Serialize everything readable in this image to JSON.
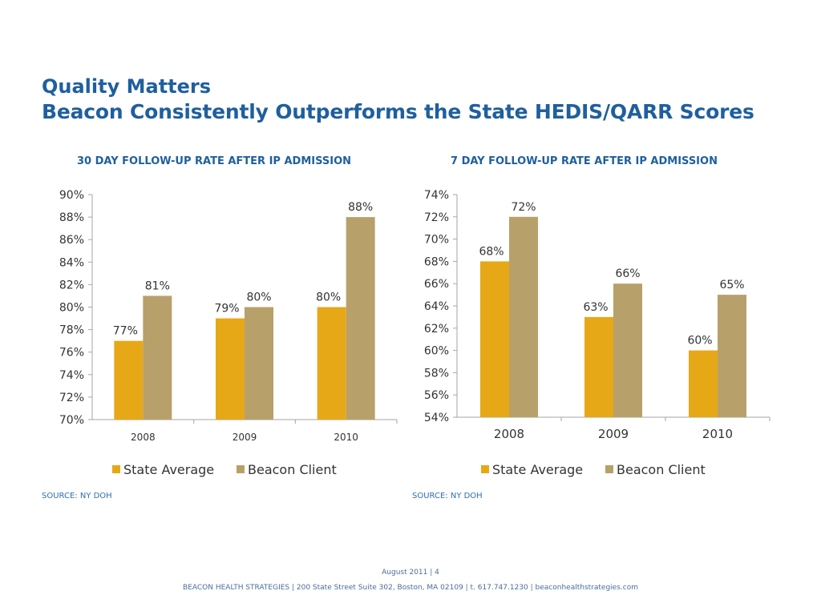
{
  "slide": {
    "title_line1": "Quality Matters",
    "title_line2": "Beacon Consistently Outperforms the State HEDIS/QARR Scores",
    "footer_date": "August 2011 | 4",
    "footer_address": "BEACON HEALTH STRATEGIES | 200 State Street Suite 302, Boston, MA 02109 | t. 617.747.1230 | beaconhealthstrategies.com"
  },
  "colors": {
    "title": "#1f5f9e",
    "state_average": "#e6a817",
    "beacon_client": "#b8a06a",
    "axis": "#a6a6a6"
  },
  "chart_data": [
    {
      "type": "bar",
      "title": "30 DAY FOLLOW-UP RATE AFTER IP ADMISSION",
      "source": "SOURCE: NY DOH",
      "categories": [
        "2008",
        "2009",
        "2010"
      ],
      "series": [
        {
          "name": "State Average",
          "values": [
            77,
            79,
            80
          ],
          "labels": [
            "77%",
            "79%",
            "80%"
          ]
        },
        {
          "name": "Beacon Client",
          "values": [
            81,
            80,
            88
          ],
          "labels": [
            "81%",
            "80%",
            "88%"
          ]
        }
      ],
      "ylim": [
        70,
        90
      ],
      "yticks": [
        "70%",
        "72%",
        "74%",
        "76%",
        "78%",
        "80%",
        "82%",
        "84%",
        "86%",
        "88%",
        "90%"
      ],
      "grid": false,
      "legend_position": "bottom"
    },
    {
      "type": "bar",
      "title": "7 DAY FOLLOW-UP RATE AFTER IP ADMISSION",
      "source": "SOURCE: NY DOH",
      "categories": [
        "2008",
        "2009",
        "2010"
      ],
      "series": [
        {
          "name": "State Average",
          "values": [
            68,
            63,
            60
          ],
          "labels": [
            "68%",
            "63%",
            "60%"
          ]
        },
        {
          "name": "Beacon Client",
          "values": [
            72,
            66,
            65
          ],
          "labels": [
            "72%",
            "66%",
            "65%"
          ]
        }
      ],
      "ylim": [
        54,
        74
      ],
      "yticks": [
        "54%",
        "56%",
        "58%",
        "60%",
        "62%",
        "64%",
        "66%",
        "68%",
        "70%",
        "72%",
        "74%"
      ],
      "grid": false,
      "legend_position": "bottom"
    }
  ]
}
